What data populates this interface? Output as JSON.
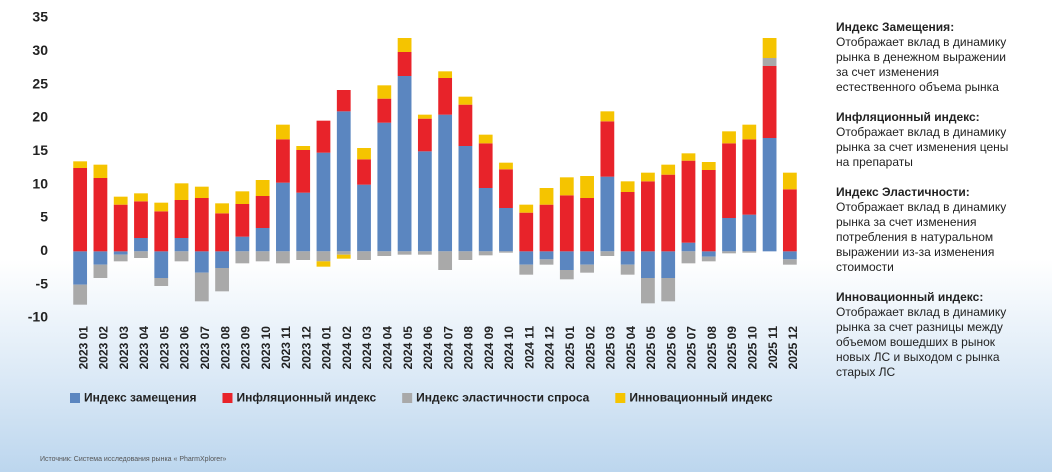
{
  "chart_data": {
    "type": "stacked-bar",
    "categories": [
      "2023 01",
      "2023 02",
      "2023 03",
      "2023 04",
      "2023 05",
      "2023 06",
      "2023 07",
      "2023 08",
      "2023 09",
      "2023 10",
      "2023 11",
      "2023 12",
      "2024 01",
      "2024 02",
      "2024 03",
      "2024 04",
      "2024 05",
      "2024 06",
      "2024 07",
      "2024 08",
      "2024 09",
      "2024 10",
      "2024 11",
      "2024 12",
      "2025 01",
      "2025 02",
      "2025 03",
      "2025 04",
      "2025 05",
      "2025 06",
      "2025 07",
      "2025 08",
      "2025 09",
      "2025 10",
      "2025 11",
      "2025 12"
    ],
    "series": [
      {
        "name": "Индекс замещения",
        "color": "#5b86c0",
        "values": [
          -5,
          -2,
          -0.5,
          2,
          -4,
          2,
          -3.2,
          -2.5,
          2.2,
          3.5,
          10.3,
          8.8,
          14.8,
          21,
          10,
          19.3,
          26.3,
          15,
          20.5,
          15.8,
          9.5,
          6.5,
          -2,
          -1.2,
          -2.8,
          -2,
          11.2,
          -2,
          -4,
          -4,
          1.3,
          -0.8,
          5,
          5.5,
          17,
          -1.2
        ]
      },
      {
        "name": "Инфляционный индекс",
        "color": "#e8232a",
        "values": [
          12.5,
          11,
          7,
          5.5,
          6,
          5.7,
          8,
          5.7,
          4.9,
          4.8,
          6.5,
          6.4,
          4.8,
          3.2,
          3.8,
          3.6,
          3.6,
          4.9,
          5.5,
          6.2,
          6.7,
          5.8,
          5.8,
          7,
          8.4,
          8,
          8.3,
          8.9,
          10.5,
          11.5,
          12.3,
          12.2,
          11.2,
          11.3,
          10.8,
          9.3
        ]
      },
      {
        "name": "Индекс эластичности спроса",
        "color": "#a9a9a9",
        "values": [
          -3,
          -2,
          -1,
          -1,
          -1.2,
          -1.5,
          -4.3,
          -3.5,
          -1.8,
          -1.5,
          -1.8,
          -1.3,
          -1.5,
          -0.5,
          -1.3,
          -0.7,
          -0.5,
          -0.5,
          -2.8,
          -1.3,
          -0.6,
          -0.2,
          -1.5,
          -0.8,
          -1.4,
          -1.2,
          -0.7,
          -1.5,
          -3.8,
          -3.5,
          -1.8,
          -0.7,
          -0.3,
          -0.2,
          1.2,
          -0.8
        ]
      },
      {
        "name": "Инновационный индекс",
        "color": "#f5c400",
        "values": [
          1,
          2,
          1.2,
          1.2,
          1.3,
          2.5,
          1.7,
          1.5,
          1.9,
          2.4,
          2.2,
          0.6,
          -0.8,
          -0.6,
          1.7,
          2,
          2.1,
          0.6,
          1,
          1.2,
          1.3,
          1,
          1.2,
          2.5,
          2.7,
          3.3,
          1.5,
          1.6,
          1.3,
          1.5,
          1.1,
          1.2,
          1.8,
          2.2,
          3,
          2.5
        ]
      }
    ],
    "ylim": [
      -10,
      35
    ],
    "yticks": [
      -10,
      -5,
      0,
      5,
      10,
      15,
      20,
      25,
      30,
      35
    ],
    "grid": false,
    "notes": [
      {
        "title": "Индекс Замещения:",
        "lines": [
          "Отображает вклад в динамику",
          "рынка в денежном выражении",
          "за счет изменения",
          "естественного объема рынка"
        ]
      },
      {
        "title": "Инфляционный индекс:",
        "lines": [
          "Отображает вклад в динамику",
          "рынка за счет изменения цены",
          "на препараты"
        ]
      },
      {
        "title": "Индекс Эластичности:",
        "lines": [
          "Отображает вклад в динамику",
          "рынка за счет изменения",
          "потребления в натуральном",
          "выражении из-за изменения",
          "стоимости"
        ]
      },
      {
        "title": "Инновационный индекс:",
        "lines": [
          "Отображает вклад в динамику",
          "рынка за счет разницы между",
          "объемом вошедших в рынок",
          "новых ЛС и выходом с рынка",
          "старых ЛС"
        ]
      }
    ],
    "source": "Источник: Система исследования рынка « PharmXplorer»"
  }
}
